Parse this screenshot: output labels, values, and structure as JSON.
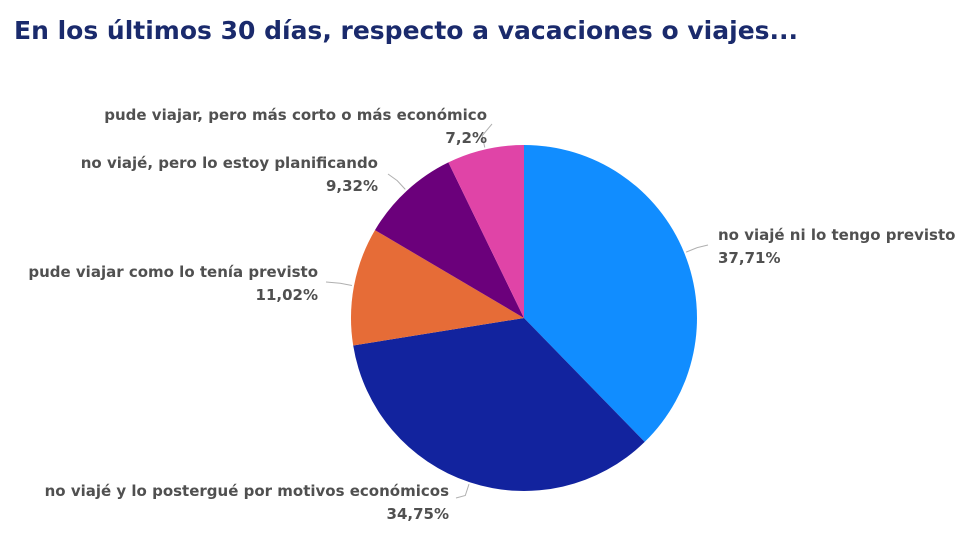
{
  "title": "En los últimos 30 días, respecto a vacaciones o viajes...",
  "chart_data": {
    "type": "pie",
    "title": "En los últimos 30 días, respecto a vacaciones o viajes...",
    "slices": [
      {
        "label": "no viajé ni lo tengo previsto",
        "value": 37.71,
        "value_label": "37,71%",
        "color": "#118dff"
      },
      {
        "label": "no viajé y lo postergué por motivos económicos",
        "value": 34.75,
        "value_label": "34,75%",
        "color": "#12239e"
      },
      {
        "label": "pude viajar como lo tenía previsto",
        "value": 11.02,
        "value_label": "11,02%",
        "color": "#e66c37"
      },
      {
        "label": "no viajé, pero lo estoy planificando",
        "value": 9.32,
        "value_label": "9,32%",
        "color": "#6b007b"
      },
      {
        "label": "pude viajar, pero más corto o más económico",
        "value": 7.2,
        "value_label": "7,2%",
        "color": "#e044a7"
      }
    ],
    "start_angle": "12 o'clock",
    "direction": "clockwise",
    "legend": "none (outside data labels)"
  }
}
